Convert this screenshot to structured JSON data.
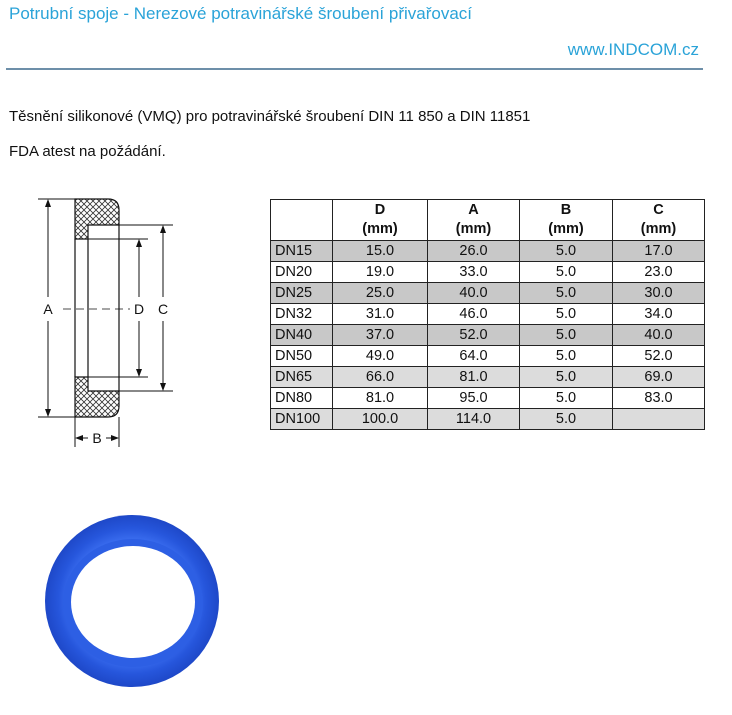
{
  "header": {
    "title": "Potrubní spoje - Nerezové potravinářské šroubení přivařovací",
    "website": "www.INDCOM.cz"
  },
  "description": "Těsnění silikonové (VMQ) pro potravinářské šroubení DIN 11 850 a DIN 11851",
  "note": "FDA atest na požádání.",
  "diagram": {
    "labels": {
      "a": "A",
      "b": "B",
      "c": "C",
      "d": "D"
    }
  },
  "table": {
    "columns": [
      {
        "name": "D",
        "unit": "(mm)"
      },
      {
        "name": "A",
        "unit": "(mm)"
      },
      {
        "name": "B",
        "unit": "(mm)"
      },
      {
        "name": "C",
        "unit": "(mm)"
      }
    ],
    "rows": [
      [
        "DN15",
        "15.0",
        "26.0",
        "5.0",
        "17.0"
      ],
      [
        "DN20",
        "19.0",
        "33.0",
        "5.0",
        "23.0"
      ],
      [
        "DN25",
        "25.0",
        "40.0",
        "5.0",
        "30.0"
      ],
      [
        "DN32",
        "31.0",
        "46.0",
        "5.0",
        "34.0"
      ],
      [
        "DN40",
        "37.0",
        "52.0",
        "5.0",
        "40.0"
      ],
      [
        "DN50",
        "49.0",
        "64.0",
        "5.0",
        "52.0"
      ],
      [
        "DN65",
        "66.0",
        "81.0",
        "5.0",
        "69.0"
      ],
      [
        "DN80",
        "81.0",
        "95.0",
        "5.0",
        "83.0"
      ],
      [
        "DN100",
        "100.0",
        "114.0",
        "5.0",
        ""
      ]
    ]
  },
  "colors": {
    "accent": "#2aa3d8",
    "rule": "#6d8fa9",
    "row_shade": "#c8c8c8",
    "seal_blue": "#2b5fe0"
  }
}
